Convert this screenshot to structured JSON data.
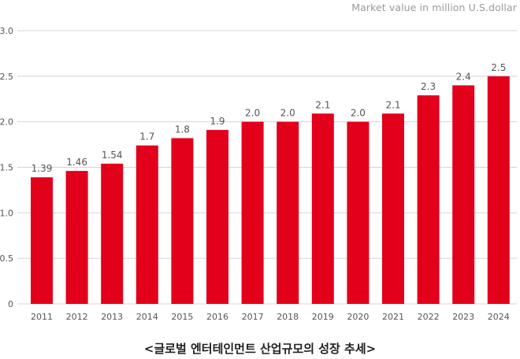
{
  "colors": {
    "bar": "#e2001a",
    "grid": "#d4d4d4",
    "axis_text": "#555555",
    "label_text": "#555555"
  },
  "unit_label": "Market value in million U.S.dollar",
  "caption": "<글로벌 엔터테인먼트 산업규모의 성장 추세>",
  "chart_data": {
    "type": "bar",
    "title": "<글로벌 엔터테인먼트 산업규모의 성장 추세>",
    "ylabel": "Market value in million U.S.dollar",
    "xlabel": "",
    "categories": [
      "2011",
      "2012",
      "2013",
      "2014",
      "2015",
      "2016",
      "2017",
      "2018",
      "2019",
      "2020",
      "2021",
      "2022",
      "2023",
      "2024"
    ],
    "values": [
      1.39,
      1.46,
      1.54,
      1.7,
      1.8,
      1.9,
      2.0,
      2.0,
      2.1,
      2.0,
      2.1,
      2.3,
      2.4,
      2.5
    ],
    "value_labels": [
      "1.39",
      "1.46",
      "1.54",
      "1.7",
      "1.8",
      "1.9",
      "2.0",
      "2.0",
      "2.1",
      "2.0",
      "2.1",
      "2.3",
      "2.4",
      "2.5"
    ],
    "bar_values": [
      1.39,
      1.46,
      1.54,
      1.74,
      1.82,
      1.91,
      2.0,
      2.0,
      2.09,
      2.0,
      2.09,
      2.29,
      2.4,
      2.5
    ],
    "ylim": [
      0,
      3.0
    ],
    "yticks": [
      "0",
      "0.5",
      "1.0",
      "1.5",
      "2.0",
      "2.5",
      "3.0"
    ],
    "grid": true,
    "legend": "none"
  }
}
